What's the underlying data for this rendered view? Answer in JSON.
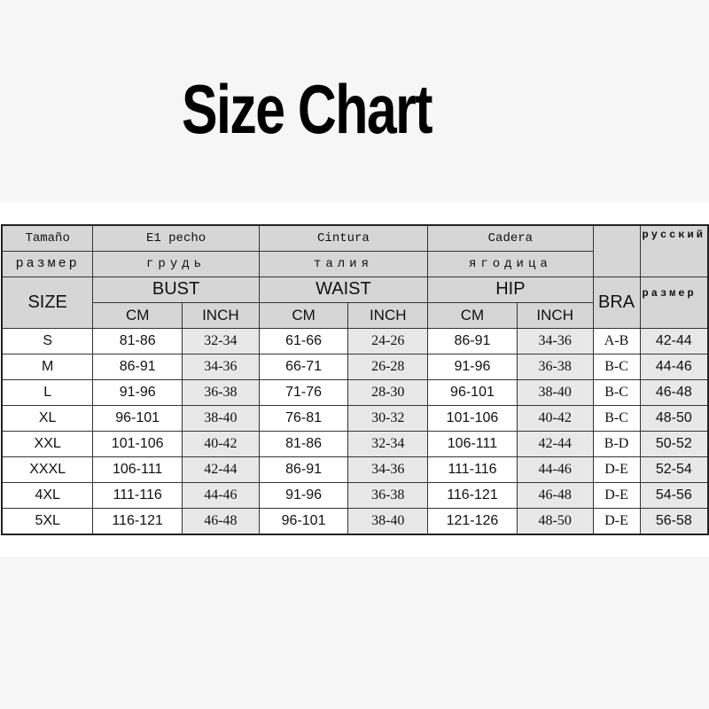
{
  "title": "Size Chart",
  "header": {
    "row1": [
      "Tamaño",
      "E1 pecho",
      "Cintura",
      "Cadera"
    ],
    "row2": [
      "размер",
      "грудь",
      "талия",
      "ягодица"
    ],
    "size": "SIZE",
    "bust": "BUST",
    "waist": "WAIST",
    "hip": "HIP",
    "bra": "BRA",
    "russian": "русский",
    "razmer": "размер",
    "cm": "CM",
    "inch": "INCH"
  },
  "rows": [
    [
      "S",
      "81-86",
      "32-34",
      "61-66",
      "24-26",
      "86-91",
      "34-36",
      "A-B",
      "42-44"
    ],
    [
      "M",
      "86-91",
      "34-36",
      "66-71",
      "26-28",
      "91-96",
      "36-38",
      "B-C",
      "44-46"
    ],
    [
      "L",
      "91-96",
      "36-38",
      "71-76",
      "28-30",
      "96-101",
      "38-40",
      "B-C",
      "46-48"
    ],
    [
      "XL",
      "96-101",
      "38-40",
      "76-81",
      "30-32",
      "101-106",
      "40-42",
      "B-C",
      "48-50"
    ],
    [
      "XXL",
      "101-106",
      "40-42",
      "81-86",
      "32-34",
      "106-111",
      "42-44",
      "B-D",
      "50-52"
    ],
    [
      "XXXL",
      "106-111",
      "42-44",
      "86-91",
      "34-36",
      "111-116",
      "44-46",
      "D-E",
      "52-54"
    ],
    [
      "4XL",
      "111-116",
      "44-46",
      "91-96",
      "36-38",
      "116-121",
      "46-48",
      "D-E",
      "54-56"
    ],
    [
      "5XL",
      "116-121",
      "46-48",
      "96-101",
      "38-40",
      "121-126",
      "48-50",
      "D-E",
      "56-58"
    ]
  ]
}
